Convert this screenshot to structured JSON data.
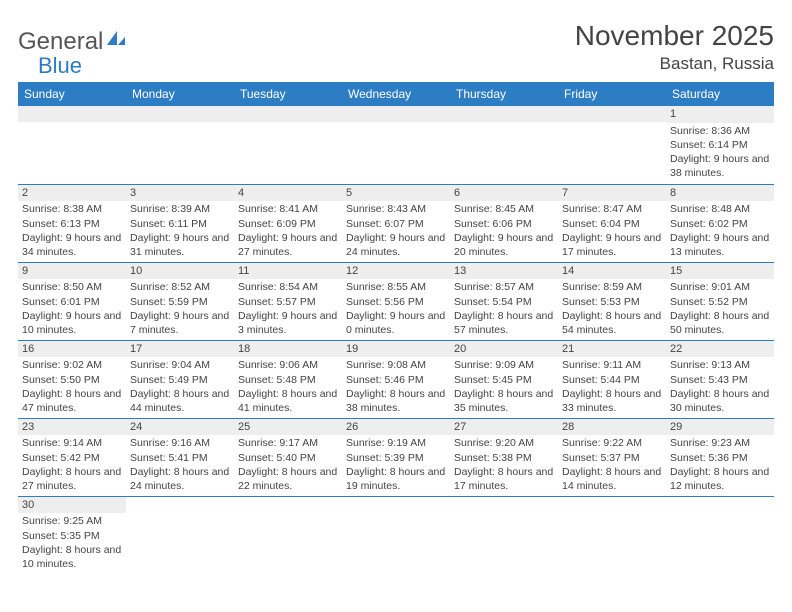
{
  "logo": {
    "text1": "General",
    "text2": "Blue"
  },
  "title": "November 2025",
  "location": "Bastan, Russia",
  "day_headers": [
    "Sunday",
    "Monday",
    "Tuesday",
    "Wednesday",
    "Thursday",
    "Friday",
    "Saturday"
  ],
  "colors": {
    "header_bg": "#2d7dc4",
    "header_fg": "#ffffff",
    "daynum_bg": "#eeeeee",
    "text": "#444444",
    "border": "#2d7dc4"
  },
  "fonts": {
    "title_size_pt": 21,
    "location_size_pt": 13,
    "header_size_pt": 9,
    "cell_size_pt": 8
  },
  "weeks": [
    [
      null,
      null,
      null,
      null,
      null,
      null,
      {
        "n": "1",
        "sr": "8:36 AM",
        "ss": "6:14 PM",
        "dl": "9 hours and 38 minutes."
      }
    ],
    [
      {
        "n": "2",
        "sr": "8:38 AM",
        "ss": "6:13 PM",
        "dl": "9 hours and 34 minutes."
      },
      {
        "n": "3",
        "sr": "8:39 AM",
        "ss": "6:11 PM",
        "dl": "9 hours and 31 minutes."
      },
      {
        "n": "4",
        "sr": "8:41 AM",
        "ss": "6:09 PM",
        "dl": "9 hours and 27 minutes."
      },
      {
        "n": "5",
        "sr": "8:43 AM",
        "ss": "6:07 PM",
        "dl": "9 hours and 24 minutes."
      },
      {
        "n": "6",
        "sr": "8:45 AM",
        "ss": "6:06 PM",
        "dl": "9 hours and 20 minutes."
      },
      {
        "n": "7",
        "sr": "8:47 AM",
        "ss": "6:04 PM",
        "dl": "9 hours and 17 minutes."
      },
      {
        "n": "8",
        "sr": "8:48 AM",
        "ss": "6:02 PM",
        "dl": "9 hours and 13 minutes."
      }
    ],
    [
      {
        "n": "9",
        "sr": "8:50 AM",
        "ss": "6:01 PM",
        "dl": "9 hours and 10 minutes."
      },
      {
        "n": "10",
        "sr": "8:52 AM",
        "ss": "5:59 PM",
        "dl": "9 hours and 7 minutes."
      },
      {
        "n": "11",
        "sr": "8:54 AM",
        "ss": "5:57 PM",
        "dl": "9 hours and 3 minutes."
      },
      {
        "n": "12",
        "sr": "8:55 AM",
        "ss": "5:56 PM",
        "dl": "9 hours and 0 minutes."
      },
      {
        "n": "13",
        "sr": "8:57 AM",
        "ss": "5:54 PM",
        "dl": "8 hours and 57 minutes."
      },
      {
        "n": "14",
        "sr": "8:59 AM",
        "ss": "5:53 PM",
        "dl": "8 hours and 54 minutes."
      },
      {
        "n": "15",
        "sr": "9:01 AM",
        "ss": "5:52 PM",
        "dl": "8 hours and 50 minutes."
      }
    ],
    [
      {
        "n": "16",
        "sr": "9:02 AM",
        "ss": "5:50 PM",
        "dl": "8 hours and 47 minutes."
      },
      {
        "n": "17",
        "sr": "9:04 AM",
        "ss": "5:49 PM",
        "dl": "8 hours and 44 minutes."
      },
      {
        "n": "18",
        "sr": "9:06 AM",
        "ss": "5:48 PM",
        "dl": "8 hours and 41 minutes."
      },
      {
        "n": "19",
        "sr": "9:08 AM",
        "ss": "5:46 PM",
        "dl": "8 hours and 38 minutes."
      },
      {
        "n": "20",
        "sr": "9:09 AM",
        "ss": "5:45 PM",
        "dl": "8 hours and 35 minutes."
      },
      {
        "n": "21",
        "sr": "9:11 AM",
        "ss": "5:44 PM",
        "dl": "8 hours and 33 minutes."
      },
      {
        "n": "22",
        "sr": "9:13 AM",
        "ss": "5:43 PM",
        "dl": "8 hours and 30 minutes."
      }
    ],
    [
      {
        "n": "23",
        "sr": "9:14 AM",
        "ss": "5:42 PM",
        "dl": "8 hours and 27 minutes."
      },
      {
        "n": "24",
        "sr": "9:16 AM",
        "ss": "5:41 PM",
        "dl": "8 hours and 24 minutes."
      },
      {
        "n": "25",
        "sr": "9:17 AM",
        "ss": "5:40 PM",
        "dl": "8 hours and 22 minutes."
      },
      {
        "n": "26",
        "sr": "9:19 AM",
        "ss": "5:39 PM",
        "dl": "8 hours and 19 minutes."
      },
      {
        "n": "27",
        "sr": "9:20 AM",
        "ss": "5:38 PM",
        "dl": "8 hours and 17 minutes."
      },
      {
        "n": "28",
        "sr": "9:22 AM",
        "ss": "5:37 PM",
        "dl": "8 hours and 14 minutes."
      },
      {
        "n": "29",
        "sr": "9:23 AM",
        "ss": "5:36 PM",
        "dl": "8 hours and 12 minutes."
      }
    ],
    [
      {
        "n": "30",
        "sr": "9:25 AM",
        "ss": "5:35 PM",
        "dl": "8 hours and 10 minutes."
      },
      null,
      null,
      null,
      null,
      null,
      null
    ]
  ],
  "labels": {
    "sunrise": "Sunrise: ",
    "sunset": "Sunset: ",
    "daylight": "Daylight: "
  }
}
